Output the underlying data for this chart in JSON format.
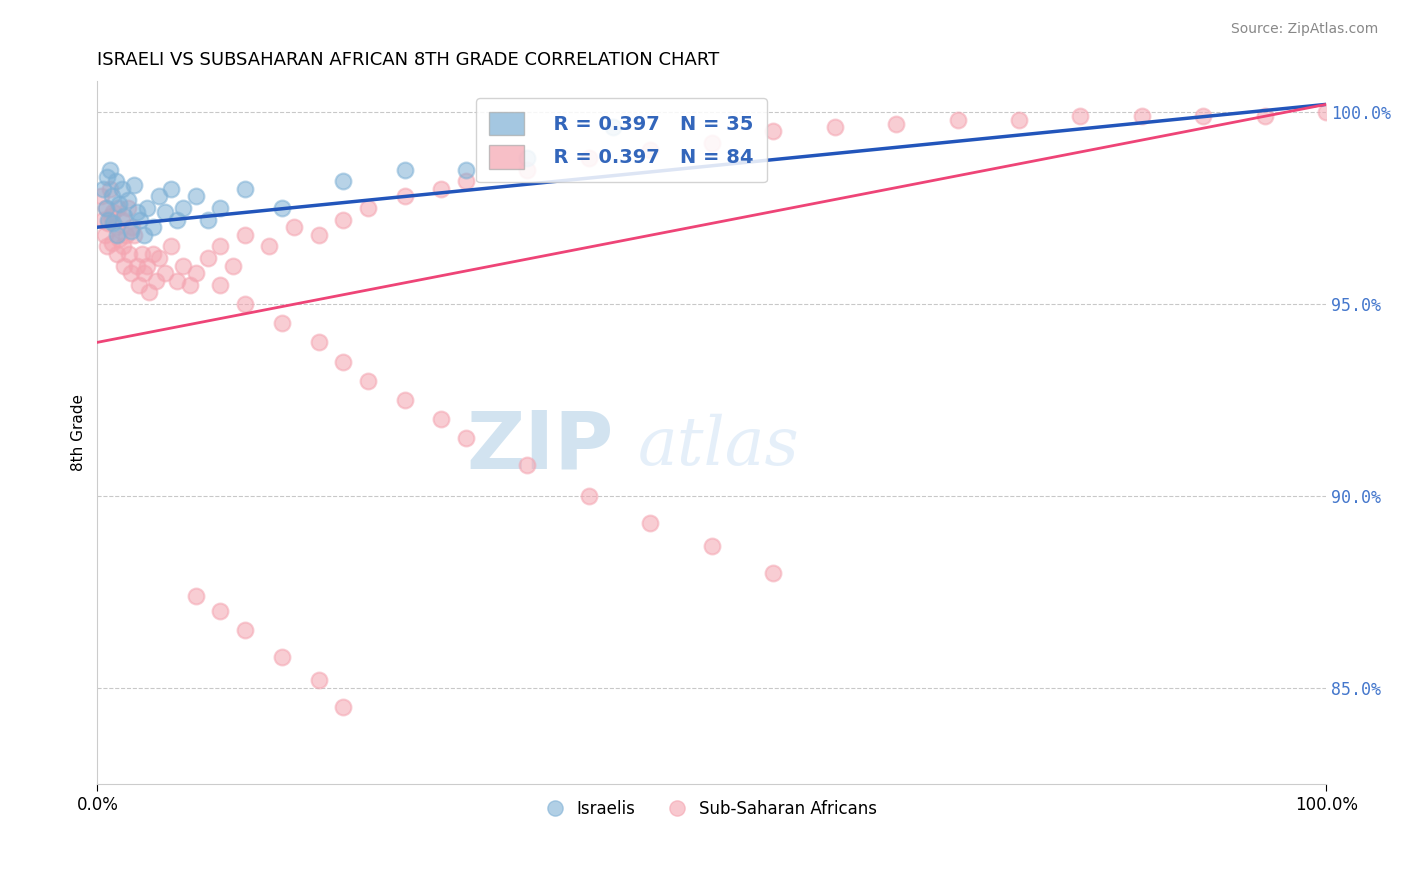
{
  "title": "ISRAELI VS SUBSAHARAN AFRICAN 8TH GRADE CORRELATION CHART",
  "source_text": "Source: ZipAtlas.com",
  "ylabel": "8th Grade",
  "xlim": [
    0.0,
    1.0
  ],
  "ylim": [
    0.825,
    1.008
  ],
  "yticks": [
    0.85,
    0.9,
    0.95,
    1.0
  ],
  "ytick_labels": [
    "85.0%",
    "90.0%",
    "95.0%",
    "100.0%"
  ],
  "xticks": [
    0.0,
    1.0
  ],
  "xtick_labels": [
    "0.0%",
    "100.0%"
  ],
  "legend_blue_r": "R = 0.397",
  "legend_blue_n": "N = 35",
  "legend_pink_r": "R = 0.397",
  "legend_pink_n": "N = 84",
  "blue_color": "#7EB0D5",
  "pink_color": "#F4A4B0",
  "trend_blue_color": "#2255BB",
  "trend_pink_color": "#EE4477",
  "watermark_zip_color": "#7EB0D5",
  "watermark_atlas_color": "#AACCEE",
  "israeli_x": [
    0.005,
    0.007,
    0.008,
    0.009,
    0.01,
    0.012,
    0.013,
    0.015,
    0.016,
    0.018,
    0.02,
    0.022,
    0.025,
    0.027,
    0.03,
    0.032,
    0.035,
    0.038,
    0.04,
    0.045,
    0.05,
    0.055,
    0.06,
    0.065,
    0.07,
    0.08,
    0.09,
    0.1,
    0.12,
    0.15,
    0.2,
    0.25,
    0.3,
    0.35,
    0.42
  ],
  "israeli_y": [
    0.98,
    0.975,
    0.983,
    0.972,
    0.985,
    0.978,
    0.971,
    0.982,
    0.968,
    0.976,
    0.98,
    0.973,
    0.977,
    0.969,
    0.981,
    0.974,
    0.972,
    0.968,
    0.975,
    0.97,
    0.978,
    0.974,
    0.98,
    0.972,
    0.975,
    0.978,
    0.972,
    0.975,
    0.98,
    0.975,
    0.982,
    0.985,
    0.985,
    0.988,
    0.996
  ],
  "african_x": [
    0.003,
    0.005,
    0.006,
    0.007,
    0.008,
    0.009,
    0.01,
    0.011,
    0.012,
    0.013,
    0.015,
    0.016,
    0.017,
    0.018,
    0.02,
    0.021,
    0.022,
    0.023,
    0.025,
    0.026,
    0.027,
    0.028,
    0.03,
    0.032,
    0.034,
    0.036,
    0.038,
    0.04,
    0.042,
    0.045,
    0.048,
    0.05,
    0.055,
    0.06,
    0.065,
    0.07,
    0.075,
    0.08,
    0.09,
    0.1,
    0.11,
    0.12,
    0.14,
    0.16,
    0.18,
    0.2,
    0.22,
    0.25,
    0.28,
    0.3,
    0.35,
    0.4,
    0.45,
    0.5,
    0.55,
    0.6,
    0.65,
    0.7,
    0.75,
    0.8,
    0.85,
    0.9,
    0.95,
    1.0,
    0.1,
    0.12,
    0.15,
    0.18,
    0.2,
    0.22,
    0.25,
    0.28,
    0.3,
    0.35,
    0.4,
    0.45,
    0.5,
    0.55,
    0.08,
    0.1,
    0.12,
    0.15,
    0.18,
    0.2
  ],
  "african_y": [
    0.978,
    0.972,
    0.968,
    0.975,
    0.965,
    0.971,
    0.98,
    0.973,
    0.966,
    0.974,
    0.97,
    0.963,
    0.975,
    0.967,
    0.972,
    0.965,
    0.96,
    0.968,
    0.975,
    0.963,
    0.958,
    0.97,
    0.968,
    0.96,
    0.955,
    0.963,
    0.958,
    0.96,
    0.953,
    0.963,
    0.956,
    0.962,
    0.958,
    0.965,
    0.956,
    0.96,
    0.955,
    0.958,
    0.962,
    0.965,
    0.96,
    0.968,
    0.965,
    0.97,
    0.968,
    0.972,
    0.975,
    0.978,
    0.98,
    0.982,
    0.985,
    0.988,
    0.99,
    0.992,
    0.995,
    0.996,
    0.997,
    0.998,
    0.998,
    0.999,
    0.999,
    0.999,
    0.999,
    1.0,
    0.955,
    0.95,
    0.945,
    0.94,
    0.935,
    0.93,
    0.925,
    0.92,
    0.915,
    0.908,
    0.9,
    0.893,
    0.887,
    0.88,
    0.874,
    0.87,
    0.865,
    0.858,
    0.852,
    0.845
  ],
  "trend_blue_x0": 0.0,
  "trend_blue_y0": 0.97,
  "trend_blue_x1": 1.0,
  "trend_blue_y1": 1.002,
  "trend_pink_x0": 0.0,
  "trend_pink_y0": 0.94,
  "trend_pink_x1": 1.0,
  "trend_pink_y1": 1.002
}
